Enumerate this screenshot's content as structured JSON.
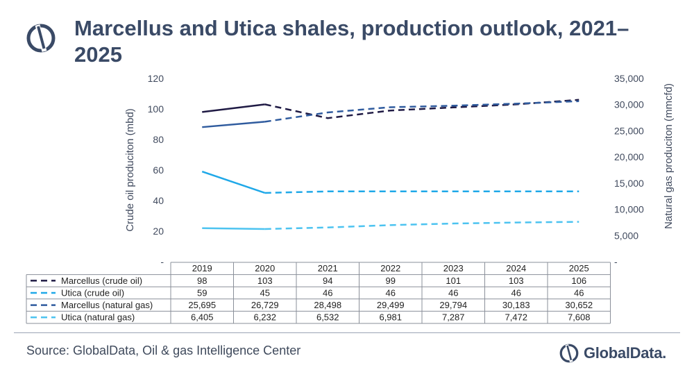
{
  "header": {
    "title": "Marcellus and Utica shales, production outlook, 2021–2025"
  },
  "footer": {
    "source": "Source: GlobalData, Oil & gas Intelligence Center",
    "brand": "GlobalData."
  },
  "colors": {
    "brand_dark": "#3a4a66",
    "marcellus_oil": "#1f1a44",
    "utica_oil": "#1fa8e8",
    "marcellus_gas": "#2f5b9e",
    "utica_gas": "#4cc3f0"
  },
  "chart_data": {
    "type": "line",
    "categories": [
      "2019",
      "2020",
      "2021",
      "2022",
      "2023",
      "2024",
      "2025"
    ],
    "actual_through": "2020",
    "y_left": {
      "label": "Crude oil produciton (mbd)",
      "ticks": [
        "-",
        "20",
        "40",
        "60",
        "80",
        "100",
        "120"
      ],
      "ylim": [
        0,
        120
      ]
    },
    "y_right": {
      "label": "Natural gas produciton (mmcfd)",
      "ticks": [
        "-",
        "5,000",
        "10,000",
        "15,000",
        "20,000",
        "25,000",
        "30,000",
        "35,000"
      ],
      "ylim": [
        0,
        35000
      ]
    },
    "series": [
      {
        "name": "Marcellus (crude oil)",
        "axis": "left",
        "color": "#1f1a44",
        "values": [
          98,
          103,
          94,
          99,
          101,
          103,
          106
        ],
        "labels": [
          "98",
          "103",
          "94",
          "99",
          "101",
          "103",
          "106"
        ]
      },
      {
        "name": "Utica (crude oil)",
        "axis": "left",
        "color": "#1fa8e8",
        "values": [
          59,
          45,
          46,
          46,
          46,
          46,
          46
        ],
        "labels": [
          "59",
          "45",
          "46",
          "46",
          "46",
          "46",
          "46"
        ]
      },
      {
        "name": "Marcellus (natural gas)",
        "axis": "right",
        "color": "#2f5b9e",
        "values": [
          25695,
          26729,
          28498,
          29499,
          29794,
          30183,
          30652
        ],
        "labels": [
          "25,695",
          "26,729",
          "28,498",
          "29,499",
          "29,794",
          "30,183",
          "30,652"
        ]
      },
      {
        "name": "Utica (natural gas)",
        "axis": "right",
        "color": "#4cc3f0",
        "values": [
          6405,
          6232,
          6532,
          6981,
          7287,
          7472,
          7608
        ],
        "labels": [
          "6,405",
          "6,232",
          "6,532",
          "6,981",
          "7,287",
          "7,472",
          "7,608"
        ]
      }
    ],
    "legend": "data-table-below"
  }
}
